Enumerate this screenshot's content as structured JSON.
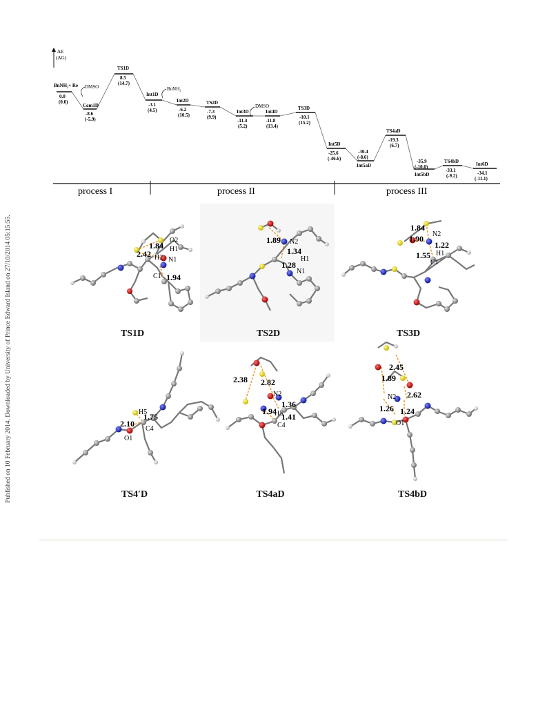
{
  "sidebar_note": "Published on 10 February 2014. Downloaded by University of Prince Edward Island on 27/10/2014 05:15:55.",
  "axis_label": [
    "ΔE",
    "(ΔG)"
  ],
  "states": [
    {
      "name": "BnNH₂+ Re",
      "e": "0.0",
      "g": "(0.0)"
    },
    {
      "name": "Com1D",
      "e": "-8.6",
      "g": "(-5.9)"
    },
    {
      "name": "TS1D",
      "e": "8.5",
      "g": "(14.7)"
    },
    {
      "name": "Int1D",
      "e": "-3.1",
      "g": "(4.5)"
    },
    {
      "name": "Int2D",
      "e": "-6.2",
      "g": "(10.5)"
    },
    {
      "name": "TS2D",
      "e": "-7.3",
      "g": "(9.9)"
    },
    {
      "name": "Int3D",
      "e": "-11.4",
      "g": "(5.2)"
    },
    {
      "name": "Int4D",
      "e": "-11.8",
      "g": "(13.4)"
    },
    {
      "name": "TS3D",
      "e": "-10.1",
      "g": "(15.2)"
    },
    {
      "name": "Int5D",
      "e": "-25.6",
      "g": "(-46.6)"
    },
    {
      "name": "Int5aD",
      "e": "-30.4",
      "g": "(-8.6)"
    },
    {
      "name": "TS4aD",
      "e": "-19.3",
      "g": "(6.7)"
    },
    {
      "name": "Int5bD",
      "e": "-35.9",
      "g": "(-10.0)"
    },
    {
      "name": "TS4bD",
      "e": "-33.1",
      "g": "(-9.2)"
    },
    {
      "name": "Int6D",
      "e": "-34.1",
      "g": "(-11.1)"
    }
  ],
  "annotations": {
    "dmso1": "DMSO",
    "bnnh2": "BnNH₂",
    "dmso2": "DMSO"
  },
  "processes": [
    "process I",
    "process II",
    "process III"
  ],
  "structures": [
    {
      "name": "TS1D",
      "distances": [
        "1.84",
        "2.42",
        "1.94"
      ],
      "atoms": [
        "O2",
        "H1",
        "H2",
        "N1",
        "C1"
      ]
    },
    {
      "name": "TS2D",
      "distances": [
        "1.89",
        "1.34",
        "1.28"
      ],
      "atoms": [
        "N2",
        "H1",
        "N1"
      ]
    },
    {
      "name": "TS3D",
      "distances": [
        "1.84",
        "1.90",
        "1.22",
        "1.55"
      ],
      "atoms": [
        "N2",
        "H1",
        "C1"
      ]
    },
    {
      "name": "TS4′D",
      "distances": [
        "2.10",
        "1.75"
      ],
      "atoms": [
        "H5",
        "O1",
        "C4"
      ]
    },
    {
      "name": "TS4aD",
      "distances": [
        "2.38",
        "2.82",
        "1.94",
        "1.36",
        "1.41"
      ],
      "atoms": [
        "N2",
        "H5",
        "C4"
      ]
    },
    {
      "name": "TS4bD",
      "distances": [
        "2.45",
        "1.89",
        "2.62",
        "1.26",
        "1.24"
      ],
      "atoms": [
        "N2",
        "O1"
      ]
    }
  ]
}
